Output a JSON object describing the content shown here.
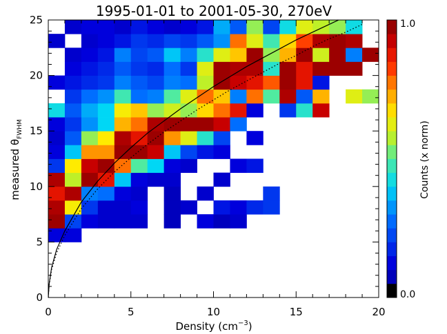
{
  "chart_data": {
    "type": "heatmap",
    "title": "1995-01-01 to 2001-05-30, 270eV",
    "xlabel_main": "Density (cm",
    "xlabel_sup": "−3",
    "xlabel_end": ")",
    "ylabel_main": "measured θ",
    "ylabel_sub": "FWHM",
    "xlim": [
      0,
      20
    ],
    "ylim": [
      0,
      25
    ],
    "x_ticks": [
      "0",
      "5",
      "10",
      "15",
      "20"
    ],
    "y_ticks": [
      "0",
      "5",
      "10",
      "15",
      "20",
      "25"
    ],
    "colorbar": {
      "label": "Counts (x norm)",
      "max_label": "1.0",
      "min_label": "0.0",
      "range": [
        0,
        1
      ]
    },
    "bin_width_x": 1,
    "bin_width_y": 1.25,
    "rows": [
      {
        "y0": 5.0,
        "values": [
          0.12,
          0.12
        ]
      },
      {
        "y0": 6.25,
        "values": [
          0.97,
          0.22,
          0.12,
          0.1,
          0.1,
          0.1,
          null,
          0.08,
          null,
          0.12,
          0.08,
          0.1,
          null,
          null,
          null,
          null
        ]
      },
      {
        "y0": 7.5,
        "values": [
          0.95,
          0.65,
          0.2,
          0.1,
          0.1,
          0.12,
          null,
          0.08,
          0.1,
          null,
          0.15,
          0.12,
          0.18,
          0.2
        ]
      },
      {
        "y0": 8.75,
        "values": [
          0.88,
          0.95,
          0.3,
          0.28,
          0.12,
          0.1,
          null,
          0.08,
          null,
          0.1,
          null,
          null,
          null,
          0.2
        ]
      },
      {
        "y0": 10.0,
        "values": [
          0.95,
          0.58,
          0.97,
          0.88,
          0.38,
          0.12,
          0.1,
          0.1,
          null,
          null,
          0.1
        ]
      },
      {
        "y0": 11.25,
        "values": [
          0.2,
          0.66,
          0.92,
          0.97,
          0.78,
          0.5,
          0.4,
          0.12,
          0.1,
          null,
          null,
          0.12,
          0.15
        ]
      },
      {
        "y0": 12.5,
        "values": [
          0.12,
          0.38,
          0.75,
          0.75,
          0.97,
          0.97,
          0.92,
          0.38,
          0.22,
          0.15,
          0.12
        ]
      },
      {
        "y0": 13.75,
        "values": [
          0.1,
          0.25,
          0.55,
          0.66,
          0.95,
          0.88,
          0.97,
          0.75,
          0.62,
          0.45,
          0.22,
          null,
          0.12
        ]
      },
      {
        "y0": 15.0,
        "values": [
          0.12,
          0.2,
          0.32,
          0.4,
          0.72,
          0.78,
          0.95,
          0.97,
          0.97,
          0.97,
          0.92,
          0.28
        ]
      },
      {
        "y0": 16.25,
        "values": [
          0.42,
          0.25,
          0.35,
          0.4,
          0.65,
          0.7,
          0.55,
          0.6,
          0.55,
          0.68,
          0.78,
          0.88,
          0.12,
          null,
          0.2,
          0.45,
          0.92
        ]
      },
      {
        "y0": 17.5,
        "values": [
          null,
          0.2,
          0.28,
          0.32,
          0.48,
          0.28,
          0.3,
          0.5,
          0.62,
          0.78,
          0.7,
          0.3,
          0.78,
          0.5,
          0.95,
          0.25,
          0.72,
          null,
          0.62,
          0.55
        ]
      },
      {
        "y0": 18.75,
        "values": [
          0.12,
          0.15,
          0.18,
          0.2,
          0.3,
          0.25,
          0.22,
          0.3,
          0.28,
          0.58,
          0.97,
          0.92,
          0.88,
          0.8,
          0.97,
          0.88,
          0.15
        ]
      },
      {
        "y0": 20.0,
        "values": [
          null,
          0.12,
          0.15,
          0.18,
          0.25,
          0.2,
          0.18,
          0.28,
          0.2,
          0.62,
          0.97,
          0.95,
          0.95,
          0.45,
          0.97,
          0.88,
          0.97,
          0.97,
          0.97
        ]
      },
      {
        "y0": 21.25,
        "values": [
          null,
          0.1,
          0.12,
          0.15,
          0.3,
          0.22,
          0.25,
          0.38,
          0.3,
          0.45,
          0.62,
          0.7,
          0.97,
          0.55,
          0.72,
          0.97,
          0.6,
          0.97,
          0.3,
          0.97
        ]
      },
      {
        "y0": 22.5,
        "values": [
          0.1,
          null,
          0.1,
          0.12,
          0.15,
          0.2,
          0.18,
          0.22,
          0.2,
          0.25,
          0.32,
          0.78,
          0.62,
          0.48,
          0.68,
          0.82,
          0.95,
          0.97,
          0.95
        ]
      },
      {
        "y0": 23.75,
        "values": [
          null,
          0.1,
          0.12,
          0.12,
          0.1,
          0.15,
          0.12,
          0.1,
          0.12,
          0.15,
          0.35,
          0.25,
          0.55,
          0.22,
          0.42,
          0.62,
          0.58,
          0.55,
          0.42
        ]
      }
    ],
    "curves": [
      {
        "name": "solid-fit",
        "style": "solid",
        "x": [
          0,
          0.05,
          0.2,
          0.5,
          1,
          2,
          3,
          4,
          5,
          6,
          7,
          8,
          9,
          10,
          11,
          12,
          13,
          14,
          15,
          16,
          17,
          18,
          19
        ],
        "y": [
          0,
          1.2,
          2.7,
          4.3,
          6.0,
          8.6,
          10.5,
          12.1,
          13.5,
          14.8,
          15.9,
          17.0,
          18.0,
          19.0,
          19.9,
          20.8,
          21.6,
          22.4,
          23.2,
          23.9,
          24.6,
          25.3,
          26.0
        ]
      },
      {
        "name": "dotted-fit",
        "style": "dotted",
        "x": [
          0,
          0.05,
          0.2,
          0.5,
          1,
          2,
          3,
          4,
          5,
          6,
          7,
          8,
          9,
          10,
          11,
          12,
          13,
          14,
          15,
          16,
          17,
          18,
          19
        ],
        "y": [
          0,
          1.1,
          2.5,
          4.0,
          5.6,
          8.0,
          9.8,
          11.3,
          12.6,
          13.8,
          14.9,
          15.9,
          16.9,
          17.8,
          18.7,
          19.5,
          20.3,
          21.1,
          21.8,
          22.6,
          23.3,
          23.9,
          24.6
        ]
      }
    ]
  }
}
